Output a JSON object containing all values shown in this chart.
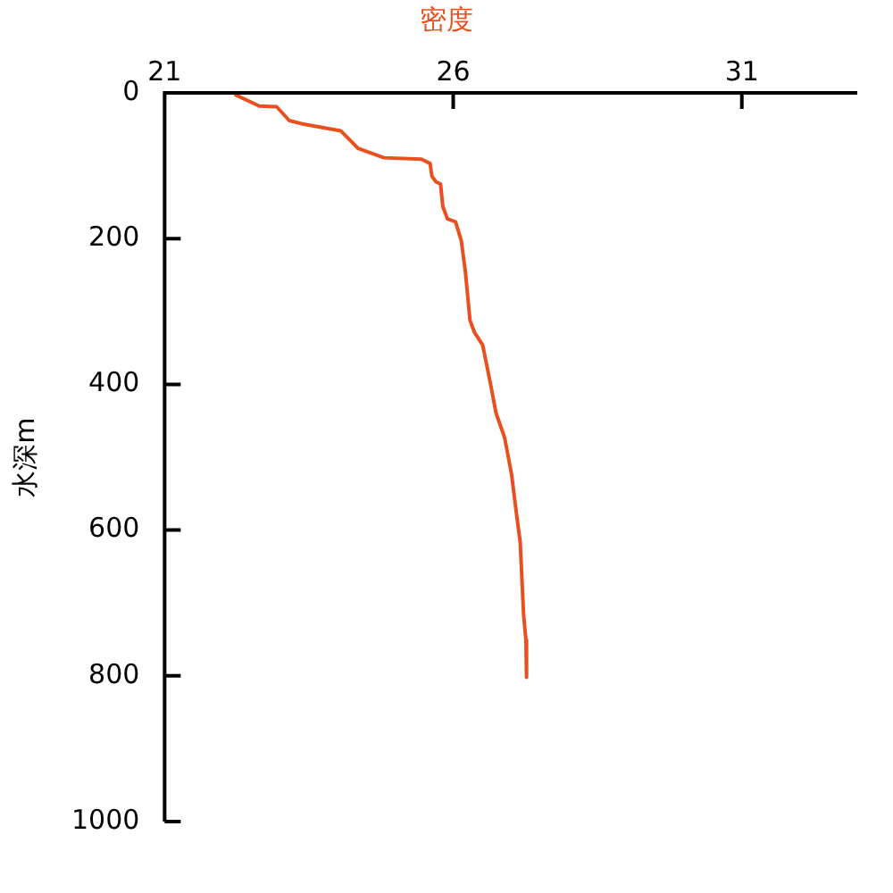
{
  "chart_data": {
    "type": "line",
    "xlabel": "密度",
    "ylabel": "水深m",
    "xlim": [
      21,
      33
    ],
    "xticks": [
      21,
      26,
      31
    ],
    "ylim": [
      1000,
      0
    ],
    "yticks": [
      0,
      200,
      400,
      600,
      800,
      1000
    ],
    "grid": false,
    "legend": false,
    "marker": "none",
    "series": [
      {
        "color": "#e8501e",
        "x": [
          22.21,
          22.64,
          22.94,
          23.16,
          23.41,
          24.05,
          24.35,
          24.8,
          25.45,
          25.6,
          25.63,
          25.7,
          25.78,
          25.82,
          25.9,
          26.04,
          26.14,
          26.21,
          26.29,
          26.37,
          26.51,
          26.64,
          26.74,
          26.89,
          27.01,
          27.09,
          27.16,
          27.19,
          27.22,
          27.26,
          27.27
        ],
        "values": [
          2,
          18,
          19,
          38,
          43,
          52,
          76,
          89,
          91,
          97,
          114,
          122,
          125,
          156,
          173,
          177,
          203,
          245,
          312,
          329,
          346,
          397,
          439,
          473,
          523,
          574,
          616,
          667,
          717,
          751,
          802
        ]
      }
    ]
  }
}
